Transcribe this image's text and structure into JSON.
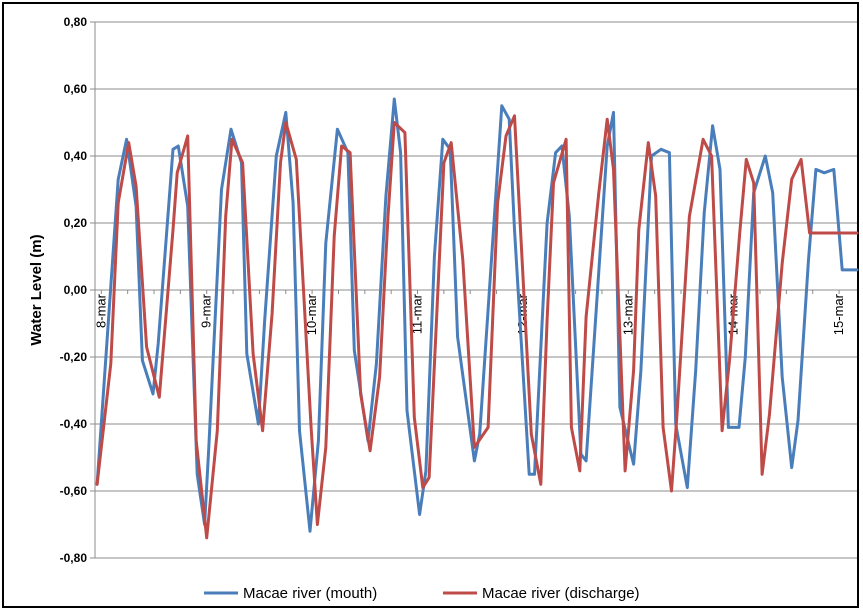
{
  "chart_data": {
    "type": "line",
    "title": "",
    "xlabel": "",
    "ylabel": "Water Level  (m)",
    "ylim": [
      -0.8,
      0.8
    ],
    "ytick_step": 0.2,
    "ytick_labels": [
      "0,80",
      "0,60",
      "0,40",
      "0,20",
      "0,00",
      "-0,20",
      "-0,40",
      "-0,60",
      "-0,80"
    ],
    "xlim": [
      7.94,
      15.17
    ],
    "x_ticks": [
      {
        "x": 8,
        "label": "8-mar"
      },
      {
        "x": 9,
        "label": "9-mar"
      },
      {
        "x": 10,
        "label": "10-mar"
      },
      {
        "x": 11,
        "label": "11-mar"
      },
      {
        "x": 12,
        "label": "12-mar"
      },
      {
        "x": 13,
        "label": "13-mar"
      },
      {
        "x": 14,
        "label": "14-mar"
      },
      {
        "x": 15,
        "label": "15-mar"
      }
    ],
    "grid": "horizontal",
    "legend_position": "bottom",
    "series": [
      {
        "name": "Macae river (mouth)",
        "color": "#4a7ebb",
        "x": [
          7.96,
          8.16,
          8.24,
          8.33,
          8.39,
          8.49,
          8.54,
          8.68,
          8.73,
          8.82,
          8.91,
          8.98,
          9.02,
          9.14,
          9.23,
          9.33,
          9.38,
          9.49,
          9.55,
          9.66,
          9.75,
          9.82,
          9.88,
          9.98,
          10.06,
          10.13,
          10.24,
          10.34,
          10.4,
          10.53,
          10.61,
          10.7,
          10.78,
          10.84,
          10.9,
          11.02,
          11.08,
          11.16,
          11.24,
          11.31,
          11.38,
          11.54,
          11.59,
          11.73,
          11.8,
          11.87,
          11.92,
          12.06,
          12.11,
          12.23,
          12.31,
          12.37,
          12.44,
          12.55,
          12.6,
          12.73,
          12.8,
          12.86,
          12.92,
          13.05,
          13.12,
          13.22,
          13.31,
          13.39,
          13.45,
          13.56,
          13.64,
          13.72,
          13.8,
          13.87,
          13.95,
          14.05,
          14.11,
          14.19,
          14.3,
          14.37,
          14.46,
          14.55,
          14.61,
          14.71,
          14.78,
          14.86,
          14.95,
          15.03,
          15.1,
          15.17
        ],
        "y": [
          -0.58,
          0.33,
          0.45,
          0.25,
          -0.21,
          -0.31,
          -0.16,
          0.42,
          0.43,
          0.25,
          -0.55,
          -0.7,
          -0.47,
          0.3,
          0.48,
          0.38,
          -0.19,
          -0.4,
          -0.09,
          0.4,
          0.53,
          0.26,
          -0.42,
          -0.72,
          -0.45,
          0.14,
          0.48,
          0.41,
          -0.18,
          -0.45,
          -0.22,
          0.28,
          0.57,
          0.41,
          -0.36,
          -0.67,
          -0.54,
          0.1,
          0.45,
          0.42,
          -0.14,
          -0.51,
          -0.43,
          0.22,
          0.55,
          0.51,
          0.18,
          -0.55,
          -0.55,
          0.2,
          0.41,
          0.43,
          0.22,
          -0.49,
          -0.51,
          0.1,
          0.43,
          0.53,
          -0.35,
          -0.52,
          -0.24,
          0.4,
          0.42,
          0.41,
          -0.4,
          -0.59,
          -0.24,
          0.23,
          0.49,
          0.36,
          -0.41,
          -0.41,
          -0.2,
          0.29,
          0.4,
          0.29,
          -0.26,
          -0.53,
          -0.39,
          0.09,
          0.36,
          0.35,
          0.36,
          0.06,
          0.06,
          0.06
        ]
      },
      {
        "name": "Macae river (discharge)",
        "color": "#be4b48",
        "x": [
          7.96,
          8.09,
          8.16,
          8.26,
          8.33,
          8.43,
          8.55,
          8.68,
          8.72,
          8.82,
          8.9,
          9.0,
          9.1,
          9.18,
          9.24,
          9.34,
          9.44,
          9.53,
          9.62,
          9.7,
          9.75,
          9.85,
          9.99,
          10.05,
          10.13,
          10.21,
          10.28,
          10.36,
          10.46,
          10.55,
          10.64,
          10.72,
          10.78,
          10.88,
          10.97,
          11.05,
          11.11,
          11.25,
          11.32,
          11.43,
          11.54,
          11.67,
          11.76,
          11.84,
          11.92,
          12.08,
          12.17,
          12.23,
          12.29,
          12.41,
          12.46,
          12.54,
          12.6,
          12.72,
          12.8,
          12.86,
          12.97,
          13.05,
          13.1,
          13.19,
          13.26,
          13.33,
          13.41,
          13.46,
          13.58,
          13.71,
          13.79,
          13.89,
          13.96,
          14.06,
          14.12,
          14.19,
          14.27,
          14.34,
          14.46,
          14.55,
          14.64,
          14.72,
          14.79,
          14.88,
          14.94,
          15.01,
          15.07,
          15.17
        ],
        "y": [
          -0.58,
          -0.22,
          0.26,
          0.44,
          0.31,
          -0.17,
          -0.32,
          0.18,
          0.35,
          0.46,
          -0.45,
          -0.74,
          -0.42,
          0.22,
          0.45,
          0.38,
          -0.19,
          -0.42,
          -0.07,
          0.38,
          0.5,
          0.39,
          -0.41,
          -0.7,
          -0.47,
          0.16,
          0.43,
          0.41,
          -0.31,
          -0.48,
          -0.26,
          0.22,
          0.5,
          0.47,
          -0.38,
          -0.59,
          -0.56,
          0.38,
          0.44,
          0.09,
          -0.47,
          -0.41,
          0.26,
          0.46,
          0.52,
          -0.43,
          -0.58,
          -0.09,
          0.32,
          0.45,
          -0.41,
          -0.54,
          -0.08,
          0.29,
          0.51,
          0.36,
          -0.54,
          -0.24,
          0.18,
          0.44,
          0.28,
          -0.41,
          -0.6,
          -0.38,
          0.22,
          0.45,
          0.4,
          -0.42,
          -0.21,
          0.18,
          0.39,
          0.32,
          -0.55,
          -0.37,
          0.08,
          0.33,
          0.39,
          0.17,
          0.17,
          0.17,
          0.17,
          0.17,
          0.17,
          0.17
        ]
      }
    ]
  }
}
